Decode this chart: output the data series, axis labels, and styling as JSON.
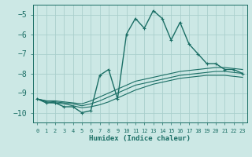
{
  "xlabel": "Humidex (Indice chaleur)",
  "ylabel": "",
  "background_color": "#cce8e5",
  "grid_color": "#aacfcc",
  "line_color": "#1a6e65",
  "xlim": [
    -0.5,
    23.5
  ],
  "ylim": [
    -10.5,
    -4.5
  ],
  "yticks": [
    -10,
    -9,
    -8,
    -7,
    -6,
    -5
  ],
  "xticks": [
    0,
    1,
    2,
    3,
    4,
    5,
    6,
    7,
    8,
    9,
    10,
    11,
    12,
    13,
    14,
    15,
    16,
    17,
    18,
    19,
    20,
    21,
    22,
    23
  ],
  "lines": [
    {
      "x": [
        0,
        1,
        2,
        3,
        4,
        5,
        6,
        7,
        8,
        9,
        10,
        11,
        12,
        13,
        14,
        15,
        16,
        17,
        18,
        19,
        20,
        21,
        22,
        23
      ],
      "y": [
        -9.3,
        -9.5,
        -9.5,
        -9.7,
        -9.7,
        -10.0,
        -9.9,
        -8.1,
        -7.8,
        -9.3,
        -6.0,
        -5.2,
        -5.7,
        -4.8,
        -5.2,
        -6.3,
        -5.4,
        -6.5,
        -7.0,
        -7.5,
        -7.5,
        -7.8,
        -7.8,
        -8.0
      ],
      "marker": true,
      "lw": 1.0
    },
    {
      "x": [
        0,
        1,
        2,
        3,
        4,
        5,
        6,
        7,
        8,
        9,
        10,
        11,
        12,
        13,
        14,
        15,
        16,
        17,
        18,
        19,
        20,
        21,
        22,
        23
      ],
      "y": [
        -9.3,
        -9.4,
        -9.4,
        -9.45,
        -9.5,
        -9.55,
        -9.4,
        -9.2,
        -9.0,
        -8.8,
        -8.6,
        -8.4,
        -8.3,
        -8.2,
        -8.1,
        -8.0,
        -7.9,
        -7.85,
        -7.8,
        -7.75,
        -7.7,
        -7.7,
        -7.75,
        -7.8
      ],
      "marker": false,
      "lw": 0.8
    },
    {
      "x": [
        0,
        1,
        2,
        3,
        4,
        5,
        6,
        7,
        8,
        9,
        10,
        11,
        12,
        13,
        14,
        15,
        16,
        17,
        18,
        19,
        20,
        21,
        22,
        23
      ],
      "y": [
        -9.3,
        -9.4,
        -9.45,
        -9.5,
        -9.55,
        -9.65,
        -9.55,
        -9.4,
        -9.2,
        -9.0,
        -8.8,
        -8.6,
        -8.5,
        -8.4,
        -8.3,
        -8.2,
        -8.1,
        -8.05,
        -8.0,
        -7.95,
        -7.9,
        -7.9,
        -7.95,
        -8.0
      ],
      "marker": false,
      "lw": 0.8
    },
    {
      "x": [
        0,
        1,
        2,
        3,
        4,
        5,
        6,
        7,
        8,
        9,
        10,
        11,
        12,
        13,
        14,
        15,
        16,
        17,
        18,
        19,
        20,
        21,
        22,
        23
      ],
      "y": [
        -9.3,
        -9.45,
        -9.5,
        -9.55,
        -9.65,
        -9.75,
        -9.7,
        -9.6,
        -9.45,
        -9.25,
        -9.05,
        -8.85,
        -8.7,
        -8.55,
        -8.45,
        -8.35,
        -8.25,
        -8.2,
        -8.15,
        -8.1,
        -8.1,
        -8.1,
        -8.15,
        -8.2
      ],
      "marker": false,
      "lw": 0.8
    }
  ]
}
